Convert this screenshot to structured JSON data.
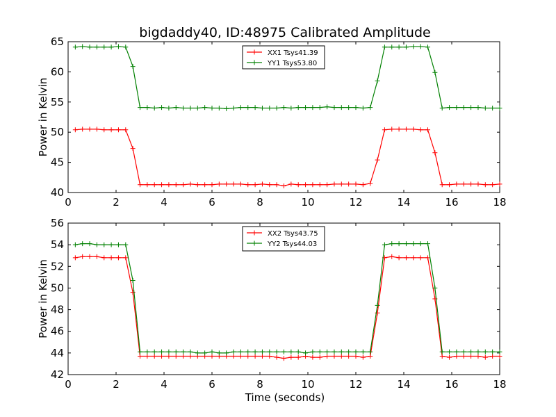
{
  "figure": {
    "title": "bigdaddy40, ID:48975 Calibrated Amplitude",
    "xlabel": "Time (seconds)"
  },
  "colors": {
    "XX": "#ff0000",
    "YY": "#008000"
  },
  "chart_data": [
    {
      "type": "line",
      "ylabel": "Power in Kelvin",
      "xlim": [
        0,
        18
      ],
      "ylim": [
        40,
        65
      ],
      "xticks": [
        0,
        2,
        4,
        6,
        8,
        10,
        12,
        14,
        16,
        18
      ],
      "yticks": [
        40,
        45,
        50,
        55,
        60,
        65
      ],
      "legend_position": "top-center",
      "grid": false,
      "x": [
        0.3,
        0.6,
        0.9,
        1.2,
        1.5,
        1.8,
        2.1,
        2.4,
        2.7,
        3.0,
        3.3,
        3.6,
        3.9,
        4.2,
        4.5,
        4.8,
        5.1,
        5.4,
        5.7,
        6.0,
        6.3,
        6.6,
        6.9,
        7.2,
        7.5,
        7.8,
        8.1,
        8.4,
        8.7,
        9.0,
        9.3,
        9.6,
        9.9,
        10.2,
        10.5,
        10.8,
        11.1,
        11.4,
        11.7,
        12.0,
        12.3,
        12.6,
        12.9,
        13.2,
        13.5,
        13.8,
        14.1,
        14.4,
        14.7,
        15.0,
        15.3,
        15.6,
        15.9,
        16.2,
        16.5,
        16.8,
        17.1,
        17.4,
        17.7,
        18.0
      ],
      "series": [
        {
          "name": "XX1 Tsys41.39",
          "color_key": "XX",
          "values": [
            50.4,
            50.5,
            50.5,
            50.5,
            50.4,
            50.4,
            50.4,
            50.4,
            47.3,
            41.3,
            41.3,
            41.3,
            41.3,
            41.3,
            41.3,
            41.3,
            41.4,
            41.3,
            41.3,
            41.3,
            41.4,
            41.4,
            41.4,
            41.4,
            41.3,
            41.3,
            41.4,
            41.3,
            41.3,
            41.1,
            41.4,
            41.3,
            41.3,
            41.3,
            41.3,
            41.3,
            41.4,
            41.4,
            41.4,
            41.4,
            41.3,
            41.5,
            45.4,
            50.4,
            50.5,
            50.5,
            50.5,
            50.5,
            50.4,
            50.4,
            46.6,
            41.3,
            41.3,
            41.4,
            41.4,
            41.4,
            41.4,
            41.3,
            41.3,
            41.4
          ]
        },
        {
          "name": "YY1 Tsys53.80",
          "color_key": "YY",
          "values": [
            64.1,
            64.2,
            64.1,
            64.1,
            64.1,
            64.1,
            64.2,
            64.1,
            60.9,
            54.1,
            54.1,
            54.0,
            54.1,
            54.0,
            54.1,
            54.0,
            54.0,
            54.0,
            54.1,
            54.0,
            54.0,
            53.9,
            54.0,
            54.1,
            54.1,
            54.1,
            54.0,
            54.0,
            54.0,
            54.1,
            54.0,
            54.1,
            54.1,
            54.1,
            54.1,
            54.2,
            54.1,
            54.1,
            54.1,
            54.1,
            54.0,
            54.1,
            58.5,
            64.1,
            64.1,
            64.1,
            64.1,
            64.2,
            64.2,
            64.1,
            59.9,
            54.0,
            54.1,
            54.1,
            54.1,
            54.1,
            54.1,
            54.0,
            54.0,
            54.0
          ]
        }
      ]
    },
    {
      "type": "line",
      "ylabel": "Power in Kelvin",
      "xlim": [
        0,
        18
      ],
      "ylim": [
        42,
        56
      ],
      "xticks": [
        0,
        2,
        4,
        6,
        8,
        10,
        12,
        14,
        16,
        18
      ],
      "yticks": [
        42,
        44,
        46,
        48,
        50,
        52,
        54,
        56
      ],
      "legend_position": "top-center",
      "grid": false,
      "x": [
        0.3,
        0.6,
        0.9,
        1.2,
        1.5,
        1.8,
        2.1,
        2.4,
        2.7,
        3.0,
        3.3,
        3.6,
        3.9,
        4.2,
        4.5,
        4.8,
        5.1,
        5.4,
        5.7,
        6.0,
        6.3,
        6.6,
        6.9,
        7.2,
        7.5,
        7.8,
        8.1,
        8.4,
        8.7,
        9.0,
        9.3,
        9.6,
        9.9,
        10.2,
        10.5,
        10.8,
        11.1,
        11.4,
        11.7,
        12.0,
        12.3,
        12.6,
        12.9,
        13.2,
        13.5,
        13.8,
        14.1,
        14.4,
        14.7,
        15.0,
        15.3,
        15.6,
        15.9,
        16.2,
        16.5,
        16.8,
        17.1,
        17.4,
        17.7,
        18.0
      ],
      "series": [
        {
          "name": "XX2 Tsys43.75",
          "color_key": "XX",
          "values": [
            52.8,
            52.9,
            52.9,
            52.9,
            52.8,
            52.8,
            52.8,
            52.8,
            49.6,
            43.7,
            43.7,
            43.7,
            43.7,
            43.7,
            43.7,
            43.7,
            43.7,
            43.7,
            43.7,
            43.7,
            43.7,
            43.7,
            43.7,
            43.7,
            43.7,
            43.7,
            43.7,
            43.7,
            43.6,
            43.5,
            43.6,
            43.6,
            43.7,
            43.6,
            43.6,
            43.7,
            43.7,
            43.7,
            43.7,
            43.7,
            43.6,
            43.7,
            47.7,
            52.8,
            52.9,
            52.8,
            52.8,
            52.8,
            52.8,
            52.8,
            49.0,
            43.7,
            43.6,
            43.7,
            43.7,
            43.7,
            43.7,
            43.6,
            43.7,
            43.7
          ]
        },
        {
          "name": "YY2 Tsys44.03",
          "color_key": "YY",
          "values": [
            54.0,
            54.1,
            54.1,
            54.0,
            54.0,
            54.0,
            54.0,
            54.0,
            50.7,
            44.1,
            44.1,
            44.1,
            44.1,
            44.1,
            44.1,
            44.1,
            44.1,
            44.0,
            44.0,
            44.1,
            44.0,
            44.0,
            44.1,
            44.1,
            44.1,
            44.1,
            44.1,
            44.1,
            44.1,
            44.1,
            44.1,
            44.1,
            44.0,
            44.1,
            44.1,
            44.1,
            44.1,
            44.1,
            44.1,
            44.1,
            44.1,
            44.1,
            48.4,
            54.0,
            54.1,
            54.1,
            54.1,
            54.1,
            54.1,
            54.1,
            50.0,
            44.1,
            44.1,
            44.1,
            44.1,
            44.1,
            44.1,
            44.1,
            44.1,
            44.1
          ]
        }
      ]
    }
  ]
}
